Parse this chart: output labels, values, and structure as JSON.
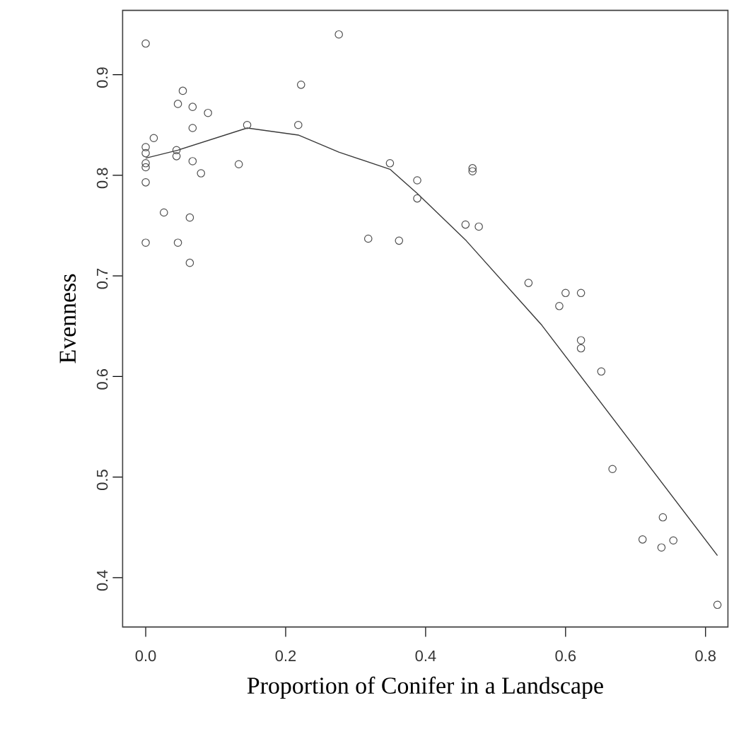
{
  "chart_data": {
    "type": "scatter",
    "xlabel": "Proportion of Conifer in a Landscape",
    "ylabel": "Evenness",
    "xlim": [
      -0.033,
      0.832
    ],
    "ylim": [
      0.351,
      0.964
    ],
    "xticks": [
      {
        "value": 0,
        "label": "0.0"
      },
      0.2,
      0.4,
      0.6,
      0.8
    ],
    "yticks": [
      0.4,
      0.5,
      0.6,
      0.7,
      0.8,
      0.9
    ],
    "grid": false,
    "series": [
      {
        "marker": "circle",
        "color": "#505050",
        "x": [
          0,
          0,
          0,
          0,
          0,
          0,
          0,
          0.0115,
          0.026,
          0.044,
          0.044,
          0.046,
          0.046,
          0.053,
          0.067,
          0.067,
          0.067,
          0.063,
          0.063,
          0.079,
          0.089,
          0.133,
          0.145,
          0.218,
          0.222,
          0.276,
          0.318,
          0.349,
          0.362,
          0.388,
          0.388,
          0.467,
          0.467,
          0.457,
          0.476,
          0.547,
          0.6,
          0.622,
          0.591,
          0.622,
          0.622,
          0.651,
          0.667,
          0.739,
          0.71,
          0.737,
          0.754,
          0.817
        ],
        "values": [
          0.931,
          0.828,
          0.822,
          0.812,
          0.808,
          0.793,
          0.733,
          0.837,
          0.763,
          0.825,
          0.819,
          0.871,
          0.733,
          0.884,
          0.868,
          0.847,
          0.814,
          0.758,
          0.713,
          0.802,
          0.862,
          0.811,
          0.85,
          0.85,
          0.89,
          0.94,
          0.737,
          0.812,
          0.735,
          0.795,
          0.777,
          0.807,
          0.804,
          0.751,
          0.749,
          0.693,
          0.683,
          0.683,
          0.67,
          0.636,
          0.628,
          0.605,
          0.508,
          0.46,
          0.438,
          0.43,
          0.437,
          0.373
        ]
      },
      {
        "type": "line",
        "marker": "none",
        "line_style": "solid",
        "color": "#3a3a3a",
        "x": [
          0,
          0.046,
          0.145,
          0.218,
          0.276,
          0.349,
          0.388,
          0.458,
          0.566,
          0.817
        ],
        "values": [
          0.817,
          0.825,
          0.847,
          0.84,
          0.823,
          0.806,
          0.782,
          0.735,
          0.651,
          0.422
        ]
      }
    ]
  }
}
